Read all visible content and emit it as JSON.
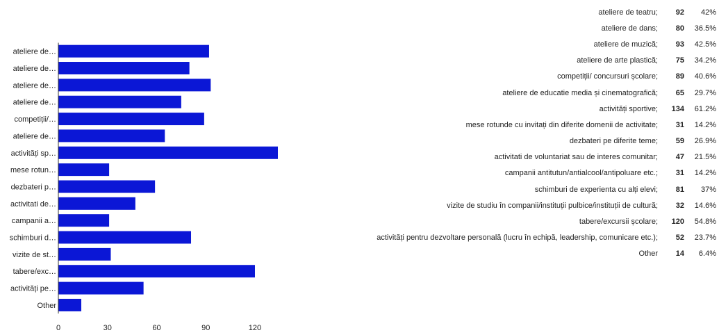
{
  "chart_data": {
    "type": "bar",
    "orientation": "horizontal",
    "categories": [
      "ateliere de teatru;",
      "ateliere de dans;",
      "ateliere de muzică;",
      "ateliere de arte plastică;",
      "competiții/ concursuri școlare;",
      "ateliere de educatie media și cinematografică;",
      "activități sportive;",
      "mese rotunde cu invitați din diferite domenii de activitate;",
      "dezbateri pe diferite teme;",
      "activitati de voluntariat sau de interes comunitar;",
      "campanii antitutun/antialcool/antipoluare etc.;",
      "schimburi de experienta cu alți elevi;",
      "vizite de studiu în companii/instituții pulbice/instituții de cultură;",
      "tabere/excursii școlare;",
      "activități pentru dezvoltare personală (lucru în echipă, leadership, comunicare etc.);",
      "Other"
    ],
    "axis_labels": [
      "ateliere de…",
      "ateliere de…",
      "ateliere de…",
      "ateliere de…",
      "competiții/…",
      "ateliere de…",
      "activități sp…",
      "mese rotun…",
      "dezbateri p…",
      "activitati de…",
      "campanii a…",
      "schimburi d…",
      "vizite de st…",
      "tabere/exc…",
      "activități pe…",
      "Other"
    ],
    "values": [
      92,
      80,
      93,
      75,
      89,
      65,
      134,
      31,
      59,
      47,
      31,
      81,
      32,
      120,
      52,
      14
    ],
    "percentages": [
      "42%",
      "36.5%",
      "42.5%",
      "34.2%",
      "40.6%",
      "29.7%",
      "61.2%",
      "14.2%",
      "26.9%",
      "21.5%",
      "14.2%",
      "37%",
      "14.6%",
      "54.8%",
      "23.7%",
      "6.4%"
    ],
    "xlim": [
      0,
      134
    ],
    "xticks": [
      0,
      30,
      60,
      90,
      120
    ],
    "bar_color": "#0b17d6",
    "grid": false,
    "legend_position": "right"
  }
}
